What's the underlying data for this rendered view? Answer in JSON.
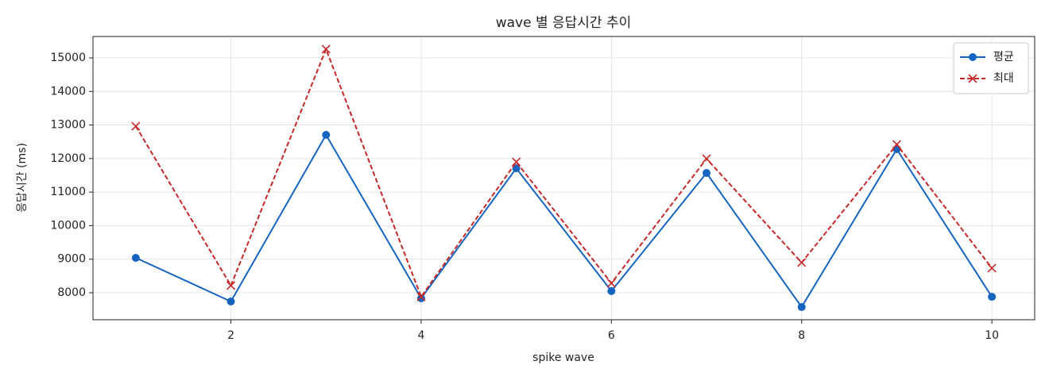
{
  "chart_data": {
    "type": "line",
    "title": "wave 별 응답시간 추이",
    "x_label": "spike wave",
    "y_label": "응답시간 (ms)",
    "x": [
      1,
      2,
      3,
      4,
      5,
      6,
      7,
      8,
      9,
      10
    ],
    "series": [
      {
        "name": "평균",
        "color": "#1565c0",
        "marker": "o",
        "dash": false,
        "values": [
          9040,
          7740,
          12705,
          7835,
          11710,
          8050,
          11570,
          7575,
          12280,
          7880
        ]
      },
      {
        "name": "최대",
        "color": "#c62828",
        "marker": "x",
        "dash": true,
        "values": [
          12965,
          8215,
          15260,
          7880,
          11900,
          8285,
          11995,
          8900,
          12420,
          8735
        ]
      }
    ],
    "xlim": [
      0.55,
      10.45
    ],
    "ylim": [
      7196,
      15638
    ],
    "xticks": [
      2,
      4,
      6,
      8,
      10
    ],
    "yticks": [
      8000,
      9000,
      10000,
      11000,
      12000,
      13000,
      14000,
      15000
    ],
    "grid": true,
    "legend": "upper right"
  }
}
